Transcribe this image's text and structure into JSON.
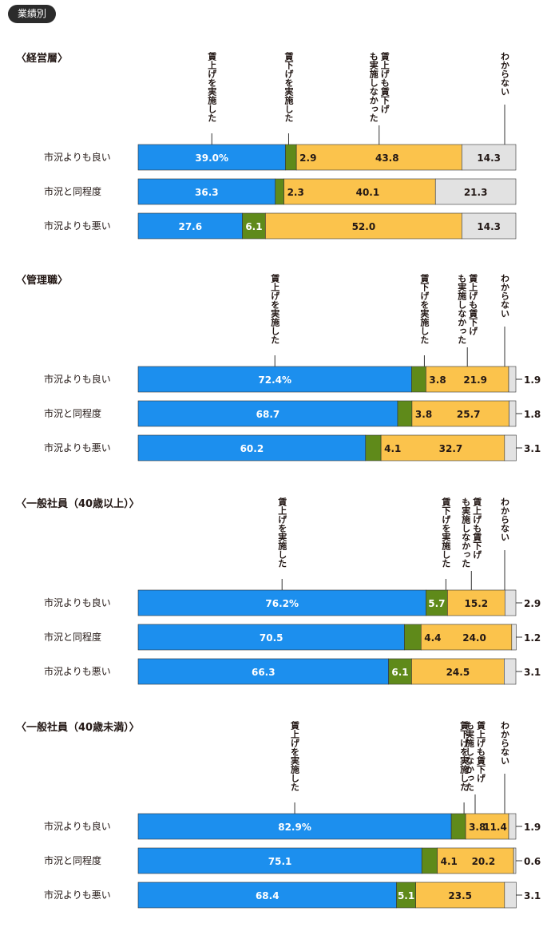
{
  "badge": "業績別",
  "colors": {
    "raise": "#1c8fee",
    "cut": "#5f8a1a",
    "neither": "#fbc34c",
    "unknown": "#e2e2e2",
    "border": "#333333"
  },
  "chart_data": [
    {
      "type": "bar",
      "title": "〈経営層〉",
      "headers": [
        "賃上げを実施した",
        "賃下げを実施した",
        "賃上げも賃下げも実施しなかった",
        "わからない"
      ],
      "categories": [
        "市況よりも良い",
        "市況と同程度",
        "市況よりも悪い"
      ],
      "series": [
        {
          "name": "賃上げを実施した",
          "values": [
            39.0,
            36.3,
            27.6
          ],
          "labels": [
            "39.0%",
            "36.3",
            "27.6"
          ]
        },
        {
          "name": "賃下げを実施した",
          "values": [
            2.9,
            2.3,
            6.1
          ],
          "labels": [
            "2.9",
            "2.3",
            "6.1"
          ]
        },
        {
          "name": "賃上げも賃下げも実施しなかった",
          "values": [
            43.8,
            40.1,
            52.0
          ],
          "labels": [
            "43.8",
            "40.1",
            "52.0"
          ]
        },
        {
          "name": "わからない",
          "values": [
            14.3,
            21.3,
            14.3
          ],
          "labels": [
            "14.3",
            "21.3",
            "14.3"
          ]
        }
      ],
      "xlim": [
        0,
        100
      ]
    },
    {
      "type": "bar",
      "title": "〈管理職〉",
      "headers": [
        "賃上げを実施した",
        "賃下げを実施した",
        "賃上げも賃下げも実施しなかった",
        "わからない"
      ],
      "categories": [
        "市況よりも良い",
        "市況と同程度",
        "市況よりも悪い"
      ],
      "series": [
        {
          "name": "賃上げを実施した",
          "values": [
            72.4,
            68.7,
            60.2
          ],
          "labels": [
            "72.4%",
            "68.7",
            "60.2"
          ]
        },
        {
          "name": "賃下げを実施した",
          "values": [
            3.8,
            3.8,
            4.1
          ],
          "labels": [
            "3.8",
            "3.8",
            "4.1"
          ]
        },
        {
          "name": "賃上げも賃下げも実施しなかった",
          "values": [
            21.9,
            25.7,
            32.7
          ],
          "labels": [
            "21.9",
            "25.7",
            "32.7"
          ]
        },
        {
          "name": "わからない",
          "values": [
            1.9,
            1.8,
            3.1
          ],
          "labels": [
            "1.9",
            "1.8",
            "3.1"
          ]
        }
      ],
      "xlim": [
        0,
        100
      ]
    },
    {
      "type": "bar",
      "title": "〈一般社員（40歳以上）〉",
      "headers": [
        "賃上げを実施した",
        "賃下げを実施した",
        "賃上げも賃下げも実施しなかった",
        "わからない"
      ],
      "categories": [
        "市況よりも良い",
        "市況と同程度",
        "市況よりも悪い"
      ],
      "series": [
        {
          "name": "賃上げを実施した",
          "values": [
            76.2,
            70.5,
            66.3
          ],
          "labels": [
            "76.2%",
            "70.5",
            "66.3"
          ]
        },
        {
          "name": "賃下げを実施した",
          "values": [
            5.7,
            4.4,
            6.1
          ],
          "labels": [
            "5.7",
            "4.4",
            "6.1"
          ]
        },
        {
          "name": "賃上げも賃下げも実施しなかった",
          "values": [
            15.2,
            24.0,
            24.5
          ],
          "labels": [
            "15.2",
            "24.0",
            "24.5"
          ]
        },
        {
          "name": "わからない",
          "values": [
            2.9,
            1.2,
            3.1
          ],
          "labels": [
            "2.9",
            "1.2",
            "3.1"
          ]
        }
      ],
      "xlim": [
        0,
        100
      ]
    },
    {
      "type": "bar",
      "title": "〈一般社員（40歳未満）〉",
      "headers": [
        "賃上げを実施した",
        "賃下げを実施した",
        "賃上げも賃下げも実施しなかった",
        "わからない"
      ],
      "categories": [
        "市況よりも良い",
        "市況と同程度",
        "市況よりも悪い"
      ],
      "series": [
        {
          "name": "賃上げを実施した",
          "values": [
            82.9,
            75.1,
            68.4
          ],
          "labels": [
            "82.9%",
            "75.1",
            "68.4"
          ]
        },
        {
          "name": "賃下げを実施した",
          "values": [
            3.8,
            4.1,
            5.1
          ],
          "labels": [
            "3.8",
            "4.1",
            "5.1"
          ]
        },
        {
          "name": "賃上げも賃下げも実施しなかった",
          "values": [
            11.4,
            20.2,
            23.5
          ],
          "labels": [
            "11.4",
            "20.2",
            "23.5"
          ]
        },
        {
          "name": "わからない",
          "values": [
            1.9,
            0.6,
            3.1
          ],
          "labels": [
            "1.9",
            "0.6",
            "3.1"
          ]
        }
      ],
      "xlim": [
        0,
        100
      ]
    }
  ]
}
